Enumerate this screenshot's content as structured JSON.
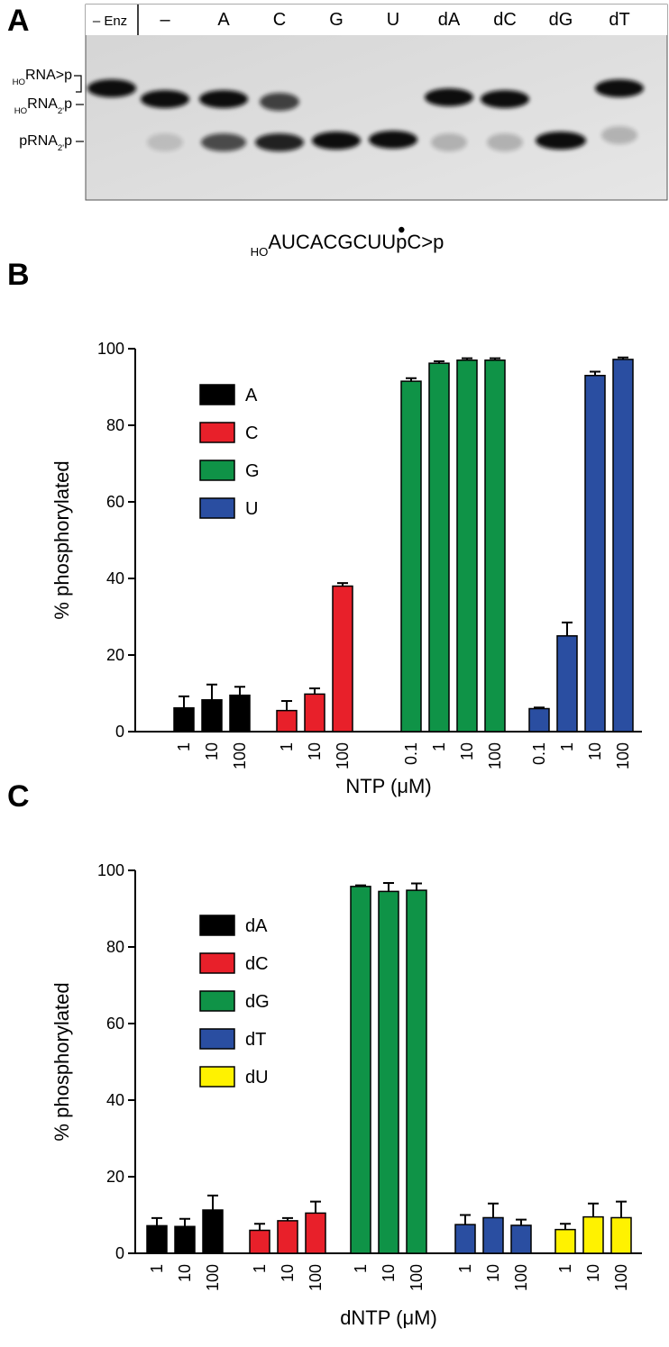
{
  "gel": {
    "panel_label": "A",
    "lanes": [
      "– Enz",
      "–",
      "A",
      "C",
      "G",
      "U",
      "dA",
      "dC",
      "dG",
      "dT"
    ],
    "band_labels": [
      [
        {
          "text": "HO",
          "sub": true
        },
        {
          "text": "RNA>p"
        }
      ],
      [
        {
          "text": "HO",
          "sub": true
        },
        {
          "text": "RNA"
        },
        {
          "text": "2'",
          "sub": true
        },
        {
          "text": "p"
        }
      ],
      [
        {
          "text": "pRNA"
        },
        {
          "text": "2'",
          "sub": true
        },
        {
          "text": "p"
        }
      ]
    ],
    "substrate": [
      {
        "text": "HO",
        "sub": true
      },
      {
        "text": "AUCACGCUU"
      },
      {
        "text": "p",
        "dot": true
      },
      {
        "text": "C>p"
      }
    ]
  },
  "chart_data": [
    {
      "type": "bar",
      "panel_label": "B",
      "y_label": "% phosphorylated",
      "x_label": "NTP (μM)",
      "ylim": [
        0,
        100
      ],
      "yticks": [
        0,
        20,
        40,
        60,
        80,
        100
      ],
      "legend": "upper left",
      "series": [
        {
          "name": "A",
          "color": "#000000",
          "categories": [
            "1",
            "10",
            "100"
          ],
          "values": [
            6.2,
            8.3,
            9.5
          ],
          "errors": [
            3,
            4,
            2.2
          ]
        },
        {
          "name": "C",
          "color": "#e8202a",
          "categories": [
            "1",
            "10",
            "100"
          ],
          "values": [
            5.5,
            9.8,
            38
          ],
          "errors": [
            2.5,
            1.5,
            0.8
          ]
        },
        {
          "name": "G",
          "color": "#0f9347",
          "categories": [
            "0.1",
            "1",
            "10",
            "100"
          ],
          "values": [
            91.5,
            96.2,
            97,
            97
          ],
          "errors": [
            0.8,
            0.5,
            0.5,
            0.5
          ]
        },
        {
          "name": "U",
          "color": "#2a4ea1",
          "categories": [
            "0.1",
            "1",
            "10",
            "100"
          ],
          "values": [
            6,
            25,
            93,
            97.2
          ],
          "errors": [
            0.3,
            3.5,
            1,
            0.5
          ]
        }
      ]
    },
    {
      "type": "bar",
      "panel_label": "C",
      "y_label": "% phosphorylated",
      "x_label": "dNTP (μM)",
      "ylim": [
        0,
        100
      ],
      "yticks": [
        0,
        20,
        40,
        60,
        80,
        100
      ],
      "legend": "upper left",
      "series": [
        {
          "name": "dA",
          "color": "#000000",
          "categories": [
            "1",
            "10",
            "100"
          ],
          "values": [
            7.2,
            7,
            11.3
          ],
          "errors": [
            2,
            2,
            3.8
          ]
        },
        {
          "name": "dC",
          "color": "#e8202a",
          "categories": [
            "1",
            "10",
            "100"
          ],
          "values": [
            6,
            8.5,
            10.5
          ],
          "errors": [
            1.7,
            0.7,
            3
          ]
        },
        {
          "name": "dG",
          "color": "#0f9347",
          "categories": [
            "1",
            "10",
            "100"
          ],
          "values": [
            95.8,
            94.5,
            94.8
          ],
          "errors": [
            0.3,
            2.2,
            1.8
          ]
        },
        {
          "name": "dT",
          "color": "#2a4ea1",
          "categories": [
            "1",
            "10",
            "100"
          ],
          "values": [
            7.5,
            9.3,
            7.3
          ],
          "errors": [
            2.5,
            3.7,
            1.5
          ]
        },
        {
          "name": "dU",
          "color": "#fff200",
          "categories": [
            "1",
            "10",
            "100"
          ],
          "values": [
            6.2,
            9.5,
            9.3
          ],
          "errors": [
            1.5,
            3.5,
            4.2
          ]
        }
      ]
    }
  ]
}
